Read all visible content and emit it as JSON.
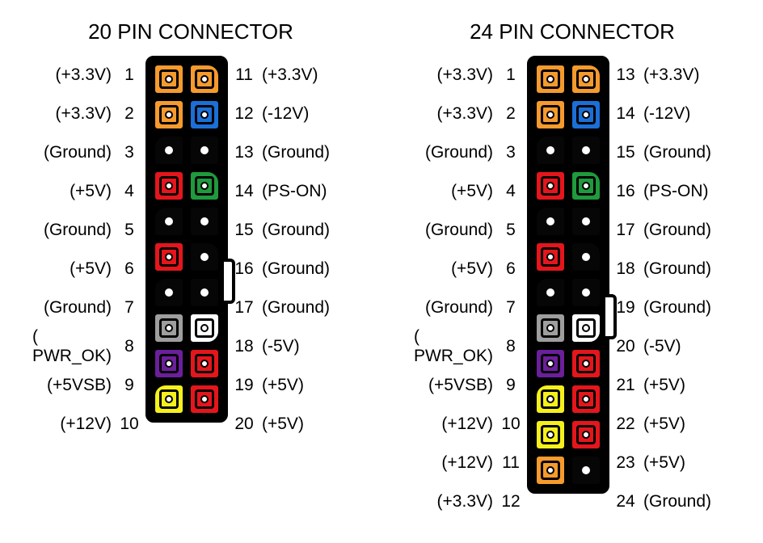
{
  "colors": {
    "orange": "#f59a2d",
    "blue": "#1b6fd6",
    "black": "#060606",
    "red": "#e4161c",
    "green": "#1f9a3d",
    "gray": "#9e9e9e",
    "white": "#ffffff",
    "purple": "#6b1f9a",
    "yellow": "#f5f01b"
  },
  "connectors": [
    {
      "title": "20 PIN CONNECTOR",
      "clip_row": 5,
      "ext_rows": 0,
      "rows": [
        {
          "l_num": "1",
          "l_sig": "(+3.3V)",
          "l_color": "orange",
          "l_shape": "sq",
          "r_num": "11",
          "r_sig": "(+3.3V)",
          "r_color": "orange",
          "r_shape": "bev-r"
        },
        {
          "l_num": "2",
          "l_sig": "(+3.3V)",
          "l_color": "orange",
          "l_shape": "sq",
          "r_num": "12",
          "r_sig": "(-12V)",
          "r_color": "blue",
          "r_shape": "sq"
        },
        {
          "l_num": "3",
          "l_sig": "(Ground)",
          "l_color": "black",
          "l_shape": "bev-l",
          "r_num": "13",
          "r_sig": "(Ground)",
          "r_color": "black",
          "r_shape": "sq"
        },
        {
          "l_num": "4",
          "l_sig": "(+5V)",
          "l_color": "red",
          "l_shape": "sq",
          "r_num": "14",
          "r_sig": "(PS-ON)",
          "r_color": "green",
          "r_shape": "bev-r"
        },
        {
          "l_num": "5",
          "l_sig": "(Ground)",
          "l_color": "black",
          "l_shape": "bev-l",
          "r_num": "15",
          "r_sig": "(Ground)",
          "r_color": "black",
          "r_shape": "sq"
        },
        {
          "l_num": "6",
          "l_sig": "(+5V)",
          "l_color": "red",
          "l_shape": "sq",
          "r_num": "16",
          "r_sig": "(Ground)",
          "r_color": "black",
          "r_shape": "bev-r"
        },
        {
          "l_num": "7",
          "l_sig": "(Ground)",
          "l_color": "black",
          "l_shape": "bev-l",
          "r_num": "17",
          "r_sig": "(Ground)",
          "r_color": "black",
          "r_shape": "sq"
        },
        {
          "l_num": "8",
          "l_sig": "( PWR_OK)",
          "l_color": "gray",
          "l_shape": "sq",
          "r_num": "18",
          "r_sig": "(-5V)",
          "r_color": "white",
          "r_shape": "bev-br"
        },
        {
          "l_num": "9",
          "l_sig": "(+5VSB)",
          "l_color": "purple",
          "l_shape": "sq",
          "r_num": "19",
          "r_sig": "(+5V)",
          "r_color": "red",
          "r_shape": "sq"
        },
        {
          "l_num": "10",
          "l_sig": "(+12V)",
          "l_color": "yellow",
          "l_shape": "bev-l",
          "r_num": "20",
          "r_sig": "(+5V)",
          "r_color": "red",
          "r_shape": "sq"
        }
      ]
    },
    {
      "title": "24 PIN CONNECTOR",
      "clip_row": 6,
      "ext_rows": 2,
      "rows": [
        {
          "l_num": "1",
          "l_sig": "(+3.3V)",
          "l_color": "orange",
          "l_shape": "sq",
          "r_num": "13",
          "r_sig": "(+3.3V)",
          "r_color": "orange",
          "r_shape": "bev-r"
        },
        {
          "l_num": "2",
          "l_sig": "(+3.3V)",
          "l_color": "orange",
          "l_shape": "sq",
          "r_num": "14",
          "r_sig": "(-12V)",
          "r_color": "blue",
          "r_shape": "sq"
        },
        {
          "l_num": "3",
          "l_sig": "(Ground)",
          "l_color": "black",
          "l_shape": "bev-l",
          "r_num": "15",
          "r_sig": "(Ground)",
          "r_color": "black",
          "r_shape": "sq"
        },
        {
          "l_num": "4",
          "l_sig": "(+5V)",
          "l_color": "red",
          "l_shape": "sq",
          "r_num": "16",
          "r_sig": "(PS-ON)",
          "r_color": "green",
          "r_shape": "bev-r"
        },
        {
          "l_num": "5",
          "l_sig": "(Ground)",
          "l_color": "black",
          "l_shape": "bev-l",
          "r_num": "17",
          "r_sig": "(Ground)",
          "r_color": "black",
          "r_shape": "sq"
        },
        {
          "l_num": "6",
          "l_sig": "(+5V)",
          "l_color": "red",
          "l_shape": "sq",
          "r_num": "18",
          "r_sig": "(Ground)",
          "r_color": "black",
          "r_shape": "bev-r"
        },
        {
          "l_num": "7",
          "l_sig": "(Ground)",
          "l_color": "black",
          "l_shape": "bev-l",
          "r_num": "19",
          "r_sig": "(Ground)",
          "r_color": "black",
          "r_shape": "sq"
        },
        {
          "l_num": "8",
          "l_sig": "( PWR_OK)",
          "l_color": "gray",
          "l_shape": "sq",
          "r_num": "20",
          "r_sig": "(-5V)",
          "r_color": "white",
          "r_shape": "bev-br"
        },
        {
          "l_num": "9",
          "l_sig": "(+5VSB)",
          "l_color": "purple",
          "l_shape": "sq",
          "r_num": "21",
          "r_sig": "(+5V)",
          "r_color": "red",
          "r_shape": "sq"
        },
        {
          "l_num": "10",
          "l_sig": "(+12V)",
          "l_color": "yellow",
          "l_shape": "bev-l",
          "r_num": "22",
          "r_sig": "(+5V)",
          "r_color": "red",
          "r_shape": "sq"
        },
        {
          "l_num": "11",
          "l_sig": "(+12V)",
          "l_color": "yellow",
          "l_shape": "sq",
          "r_num": "23",
          "r_sig": "(+5V)",
          "r_color": "red",
          "r_shape": "sq"
        },
        {
          "l_num": "12",
          "l_sig": "(+3.3V)",
          "l_color": "orange",
          "l_shape": "sq",
          "r_num": "24",
          "r_sig": "(Ground)",
          "r_color": "black",
          "r_shape": "sq"
        }
      ]
    }
  ]
}
